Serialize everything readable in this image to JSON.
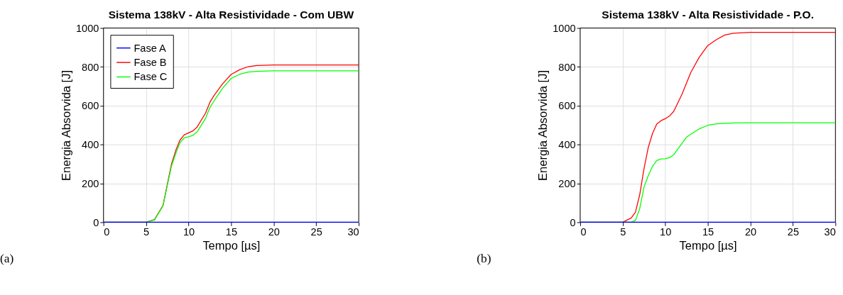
{
  "chart_data": [
    {
      "type": "line",
      "title": "Sistema 138kV - Alta Resistividade - Com UBW",
      "xlabel": "Tempo [µs]",
      "ylabel": "Energia Absorvida [J]",
      "xlim": [
        0,
        30
      ],
      "ylim": [
        0,
        1000
      ],
      "xticks": [
        0,
        5,
        10,
        15,
        20,
        25,
        30
      ],
      "yticks": [
        0,
        200,
        400,
        600,
        800,
        1000
      ],
      "grid": true,
      "legend": "top left",
      "annotations": [
        "(a)"
      ],
      "series": [
        {
          "name": "Fase A",
          "color": "#0000ff",
          "x": [
            0,
            30
          ],
          "values": [
            0,
            0
          ]
        },
        {
          "name": "Fase B",
          "color": "#ff0000",
          "x": [
            0,
            5,
            6,
            7,
            7.5,
            8,
            8.5,
            9,
            9.5,
            10,
            10.5,
            11,
            12,
            12.5,
            13,
            14,
            15,
            16,
            17,
            18,
            20,
            30
          ],
          "values": [
            0,
            0,
            14,
            87,
            195,
            300,
            370,
            424,
            450,
            460,
            470,
            490,
            562,
            617,
            653,
            713,
            761,
            785,
            801,
            807,
            810,
            810
          ]
        },
        {
          "name": "Fase C",
          "color": "#00ff00",
          "x": [
            0,
            5,
            6,
            7,
            7.5,
            8,
            8.5,
            9,
            9.5,
            10,
            10.5,
            11,
            12,
            12.5,
            13,
            14,
            15,
            16,
            17,
            18,
            20,
            30
          ],
          "values": [
            0,
            0,
            12,
            85,
            190,
            290,
            355,
            410,
            435,
            440,
            447,
            465,
            535,
            590,
            625,
            690,
            740,
            762,
            773,
            777,
            780,
            780
          ]
        }
      ]
    },
    {
      "type": "line",
      "title": "Sistema 138kV - Alta Resistividade - P.O.",
      "xlabel": "Tempo [µs]",
      "ylabel": "Energia Absorvida [J]",
      "xlim": [
        0,
        30
      ],
      "ylim": [
        0,
        1000
      ],
      "xticks": [
        0,
        5,
        10,
        15,
        20,
        25,
        30
      ],
      "yticks": [
        0,
        200,
        400,
        600,
        800,
        1000
      ],
      "grid": true,
      "legend": "top left",
      "annotations": [
        "(b)"
      ],
      "series": [
        {
          "name": "Fase A",
          "color": "#0000ff",
          "x": [
            0,
            30
          ],
          "values": [
            0,
            0
          ]
        },
        {
          "name": "Fase B",
          "color": "#ff0000",
          "x": [
            0,
            5,
            6,
            6.5,
            7,
            7.5,
            8,
            8.5,
            9,
            9.5,
            10,
            10.5,
            11,
            12,
            13,
            14,
            15,
            16,
            17,
            18,
            20,
            30
          ],
          "values": [
            0,
            0,
            22,
            52,
            142,
            275,
            384,
            457,
            505,
            523,
            533,
            547,
            571,
            662,
            771,
            850,
            910,
            940,
            964,
            973,
            978,
            978
          ]
        },
        {
          "name": "Fase C",
          "color": "#00ff00",
          "x": [
            0,
            6,
            6.5,
            7,
            7.5,
            8,
            8.5,
            9,
            9.5,
            10,
            10.5,
            11,
            12,
            12.5,
            13,
            14,
            15,
            16,
            18,
            20,
            30
          ],
          "values": [
            0,
            0,
            10,
            70,
            180,
            240,
            288,
            318,
            326,
            327,
            332,
            348,
            408,
            438,
            453,
            481,
            499,
            507,
            511,
            512,
            512
          ]
        }
      ]
    }
  ]
}
